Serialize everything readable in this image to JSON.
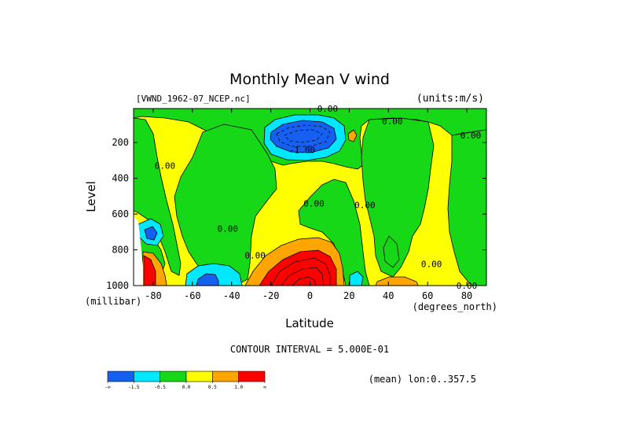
{
  "chart_data": {
    "type": "heatmap",
    "title": "Monthly Mean V wind",
    "dataset_label": "[VWND_1962-07_NCEP.nc]",
    "units_label": "(units:m/s)",
    "xlabel": "Latitude",
    "x_units": "(degrees_north)",
    "ylabel": "Level",
    "y_units": "(millibar)",
    "xlim": [
      -90,
      90
    ],
    "ylim": [
      1000,
      10
    ],
    "x_ticks": [
      -80,
      -60,
      -40,
      -20,
      0,
      20,
      40,
      60,
      80
    ],
    "x_tick_labels": [
      "-80",
      "-60",
      "-40",
      "-20",
      "0",
      "20",
      "40",
      "60",
      "80"
    ],
    "y_ticks": [
      200,
      400,
      600,
      800,
      1000
    ],
    "y_tick_labels": [
      "200",
      "400",
      "600",
      "800",
      "1000"
    ],
    "contour_interval_label": "CONTOUR INTERVAL = 5.000E-01",
    "mean_label": "(mean) lon:0..357.5",
    "contour_labels": [
      {
        "text": "0.00",
        "x": 9,
        "y": 10
      },
      {
        "text": "0.00",
        "x": 42,
        "y": 80
      },
      {
        "text": "0.00",
        "x": 82,
        "y": 160
      },
      {
        "text": "-1.00",
        "x": -4,
        "y": 240
      },
      {
        "text": "0.00",
        "x": -74,
        "y": 330
      },
      {
        "text": "0.00",
        "x": 2,
        "y": 540
      },
      {
        "text": "0.00",
        "x": 28,
        "y": 550
      },
      {
        "text": "0.00",
        "x": -42,
        "y": 680
      },
      {
        "text": "0.00",
        "x": -28,
        "y": 830
      },
      {
        "text": "0.00",
        "x": 62,
        "y": 880
      },
      {
        "text": "0.00",
        "x": 80,
        "y": 1000
      }
    ],
    "colorbar": {
      "colors": [
        "#1560f0",
        "#00e8ff",
        "#17d817",
        "#ffff00",
        "#ffa500",
        "#ff0000"
      ],
      "labels": [
        "-∞",
        "-1.5",
        "-0.5",
        "0.0",
        "0.5",
        "1.0",
        "∞"
      ]
    },
    "grid": false,
    "legend": "bottom-left"
  }
}
